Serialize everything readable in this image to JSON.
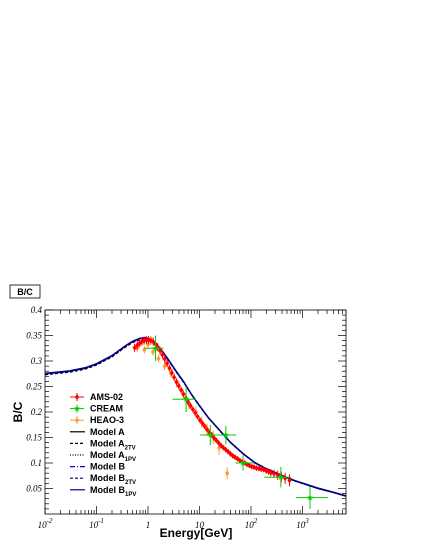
{
  "chart_data": {
    "type": "scatter",
    "title": "B/C",
    "xlabel": "Energy[GeV]",
    "ylabel": "B/C",
    "xscale": "log",
    "xlim": [
      0.01,
      7000
    ],
    "ylim": [
      0.0,
      0.4
    ],
    "x_tick_labels": [
      {
        "base": "10",
        "exp": "-2",
        "value": 0.01
      },
      {
        "base": "10",
        "exp": "-1",
        "value": 0.1
      },
      {
        "base": "1",
        "exp": "",
        "value": 1
      },
      {
        "base": "10",
        "exp": "",
        "value": 10
      },
      {
        "base": "10",
        "exp": "2",
        "value": 100
      },
      {
        "base": "10",
        "exp": "3",
        "value": 1000
      }
    ],
    "y_ticks": [
      0.05,
      0.1,
      0.15,
      0.2,
      0.25,
      0.3,
      0.35,
      0.4
    ],
    "y_tick_labels": [
      "0.05",
      "0.1",
      "0.15",
      "0.2",
      "0.25",
      "0.3",
      "0.35",
      "0.4"
    ],
    "legend_position": "bottom-left",
    "grid": false,
    "series": [
      {
        "name": "AMS-02",
        "kind": "points",
        "color": "#ff0000",
        "marker": "diamond",
        "x": [
          0.55,
          0.62,
          0.69,
          0.76,
          0.84,
          0.93,
          1.03,
          1.14,
          1.26,
          1.4,
          1.55,
          1.72,
          1.91,
          2.12,
          2.35,
          2.61,
          2.9,
          3.22,
          3.58,
          3.97,
          4.41,
          4.9,
          5.44,
          6.04,
          6.71,
          7.45,
          8.28,
          9.2,
          10.2,
          11.4,
          12.6,
          14.0,
          15.6,
          17.3,
          19.2,
          21.3,
          23.7,
          26.3,
          29.2,
          32.5,
          36.0,
          40.0,
          44.5,
          49.4,
          55.0,
          61.1,
          68.0,
          75.5,
          84.0,
          93.3,
          104,
          115,
          128,
          143,
          159,
          177,
          197,
          219,
          243,
          280,
          330,
          390,
          460,
          560
        ],
        "y": [
          0.326,
          0.331,
          0.335,
          0.338,
          0.34,
          0.341,
          0.341,
          0.34,
          0.338,
          0.333,
          0.327,
          0.32,
          0.312,
          0.304,
          0.295,
          0.286,
          0.277,
          0.268,
          0.259,
          0.251,
          0.243,
          0.235,
          0.227,
          0.219,
          0.212,
          0.205,
          0.198,
          0.191,
          0.184,
          0.178,
          0.172,
          0.166,
          0.16,
          0.155,
          0.149,
          0.144,
          0.139,
          0.134,
          0.13,
          0.126,
          0.122,
          0.118,
          0.114,
          0.111,
          0.108,
          0.105,
          0.102,
          0.1,
          0.097,
          0.095,
          0.093,
          0.092,
          0.09,
          0.089,
          0.088,
          0.087,
          0.085,
          0.083,
          0.081,
          0.079,
          0.076,
          0.073,
          0.07,
          0.066
        ],
        "yerr": [
          0.008,
          0.008,
          0.008,
          0.008,
          0.008,
          0.008,
          0.008,
          0.008,
          0.008,
          0.008,
          0.008,
          0.008,
          0.008,
          0.008,
          0.007,
          0.007,
          0.007,
          0.007,
          0.007,
          0.007,
          0.006,
          0.006,
          0.006,
          0.006,
          0.006,
          0.006,
          0.005,
          0.005,
          0.005,
          0.005,
          0.005,
          0.005,
          0.005,
          0.005,
          0.004,
          0.004,
          0.004,
          0.004,
          0.004,
          0.004,
          0.004,
          0.004,
          0.004,
          0.004,
          0.004,
          0.004,
          0.004,
          0.004,
          0.004,
          0.004,
          0.004,
          0.004,
          0.005,
          0.005,
          0.005,
          0.005,
          0.006,
          0.006,
          0.007,
          0.008,
          0.009,
          0.01,
          0.011,
          0.012
        ]
      },
      {
        "name": "CREAM",
        "kind": "points",
        "color": "#00cc00",
        "marker": "star",
        "x": [
          1.4,
          5.5,
          16.2,
          32.5,
          70.0,
          380.0,
          1400.0
        ],
        "y": [
          0.325,
          0.225,
          0.155,
          0.155,
          0.1,
          0.072,
          0.032
        ],
        "yerr": [
          0.025,
          0.025,
          0.02,
          0.018,
          0.015,
          0.02,
          0.022
        ],
        "xerr_low": [
          0.55,
          2.5,
          6.0,
          12.5,
          20.0,
          200.0,
          650.0
        ],
        "xerr_high": [
          0.6,
          3.0,
          9.0,
          19.5,
          45.0,
          220.0,
          1700.0
        ]
      },
      {
        "name": "HEAO-3",
        "kind": "points",
        "color": "#ff9933",
        "marker": "diamond",
        "x": [
          0.62,
          0.85,
          1.0,
          1.25,
          1.6,
          2.1,
          2.8,
          3.6,
          4.8,
          6.3,
          8.5,
          11.0,
          14.0,
          18.5,
          24.0,
          34.5
        ],
        "y": [
          0.325,
          0.322,
          0.332,
          0.318,
          0.305,
          0.29,
          0.275,
          0.257,
          0.235,
          0.215,
          0.2,
          0.18,
          0.165,
          0.15,
          0.13,
          0.08
        ],
        "yerr": [
          0.007,
          0.007,
          0.007,
          0.007,
          0.007,
          0.008,
          0.008,
          0.009,
          0.01,
          0.01,
          0.011,
          0.011,
          0.012,
          0.013,
          0.014,
          0.012
        ]
      },
      {
        "name": "Model A",
        "name_sub": "",
        "kind": "line",
        "color": "#000000",
        "dash": "",
        "x": [
          0.01,
          0.03,
          0.06,
          0.1,
          0.2,
          0.35,
          0.5,
          0.7,
          0.85,
          1.0,
          1.3,
          1.8,
          2.5,
          3.5,
          5.0,
          7.0,
          10,
          15,
          25,
          40,
          70,
          120,
          200,
          400,
          700,
          1000,
          2000,
          4000,
          7000
        ],
        "y": [
          0.275,
          0.28,
          0.286,
          0.294,
          0.31,
          0.328,
          0.338,
          0.344,
          0.345,
          0.344,
          0.338,
          0.322,
          0.302,
          0.28,
          0.258,
          0.234,
          0.212,
          0.188,
          0.163,
          0.14,
          0.118,
          0.1,
          0.088,
          0.075,
          0.065,
          0.06,
          0.05,
          0.042,
          0.035
        ]
      },
      {
        "name": "Model A",
        "name_sub": "2TV",
        "kind": "line",
        "color": "#000000",
        "dash": "3,2",
        "x": [
          0.01,
          0.03,
          0.06,
          0.1,
          0.2,
          0.35,
          0.5,
          0.7,
          0.85,
          1.0,
          1.3,
          1.8,
          2.5,
          3.5,
          5.0,
          7.0,
          10,
          15,
          25,
          40,
          70,
          120,
          200,
          400,
          700,
          1000,
          2000,
          4000,
          7000
        ],
        "y": [
          0.273,
          0.278,
          0.284,
          0.292,
          0.308,
          0.326,
          0.336,
          0.342,
          0.343,
          0.342,
          0.336,
          0.32,
          0.301,
          0.279,
          0.257,
          0.234,
          0.212,
          0.188,
          0.163,
          0.14,
          0.118,
          0.1,
          0.088,
          0.075,
          0.065,
          0.06,
          0.05,
          0.042,
          0.035
        ]
      },
      {
        "name": "Model A",
        "name_sub": "1PV",
        "kind": "line",
        "color": "#000000",
        "dash": "1,1.5",
        "x": [
          0.01,
          0.03,
          0.06,
          0.1,
          0.2,
          0.35,
          0.5,
          0.7,
          0.85,
          1.0,
          1.3,
          1.8,
          2.5,
          3.5,
          5.0,
          7.0,
          10,
          15,
          25,
          40,
          70,
          120,
          200,
          400,
          700,
          1000,
          2000,
          4000,
          7000
        ],
        "y": [
          0.274,
          0.279,
          0.285,
          0.293,
          0.309,
          0.327,
          0.337,
          0.343,
          0.344,
          0.343,
          0.337,
          0.321,
          0.301,
          0.279,
          0.257,
          0.234,
          0.212,
          0.188,
          0.163,
          0.14,
          0.118,
          0.1,
          0.088,
          0.075,
          0.065,
          0.06,
          0.05,
          0.042,
          0.035
        ]
      },
      {
        "name": "Model B",
        "name_sub": "",
        "kind": "line",
        "color": "#0000ff",
        "dash": "5,2,1,2",
        "x": [
          0.01,
          0.03,
          0.06,
          0.1,
          0.2,
          0.35,
          0.5,
          0.7,
          0.85,
          1.0,
          1.3,
          1.8,
          2.5,
          3.5,
          5.0,
          7.0,
          10,
          15,
          25,
          40,
          70,
          120,
          200,
          400,
          700,
          1000,
          2000,
          4000,
          7000
        ],
        "y": [
          0.275,
          0.28,
          0.286,
          0.294,
          0.31,
          0.328,
          0.338,
          0.344,
          0.345,
          0.344,
          0.338,
          0.322,
          0.302,
          0.28,
          0.258,
          0.234,
          0.212,
          0.188,
          0.163,
          0.14,
          0.118,
          0.1,
          0.088,
          0.075,
          0.065,
          0.06,
          0.05,
          0.042,
          0.035
        ]
      },
      {
        "name": "Model B",
        "name_sub": "2TV",
        "kind": "line",
        "color": "#000080",
        "dash": "3,2",
        "x": [
          0.01,
          0.03,
          0.06,
          0.1,
          0.2,
          0.35,
          0.5,
          0.7,
          0.85,
          1.0,
          1.3,
          1.8,
          2.5,
          3.5,
          5.0,
          7.0,
          10,
          15,
          25,
          40,
          70,
          120,
          200,
          400,
          700,
          1000,
          2000,
          4000,
          7000
        ],
        "y": [
          0.275,
          0.28,
          0.286,
          0.294,
          0.31,
          0.328,
          0.338,
          0.344,
          0.345,
          0.344,
          0.338,
          0.322,
          0.302,
          0.28,
          0.258,
          0.234,
          0.212,
          0.188,
          0.163,
          0.14,
          0.118,
          0.1,
          0.088,
          0.075,
          0.065,
          0.06,
          0.05,
          0.042,
          0.035
        ]
      },
      {
        "name": "Model B",
        "name_sub": "1PV",
        "kind": "line",
        "color": "#00008b",
        "dash": "",
        "x": [
          0.01,
          0.03,
          0.06,
          0.1,
          0.2,
          0.35,
          0.5,
          0.7,
          0.85,
          1.0,
          1.3,
          1.8,
          2.5,
          3.5,
          5.0,
          7.0,
          10,
          15,
          25,
          40,
          70,
          120,
          200,
          400,
          700,
          1000,
          2000,
          4000,
          7000
        ],
        "y": [
          0.276,
          0.281,
          0.287,
          0.295,
          0.311,
          0.329,
          0.339,
          0.345,
          0.346,
          0.345,
          0.339,
          0.323,
          0.303,
          0.281,
          0.259,
          0.235,
          0.213,
          0.189,
          0.164,
          0.141,
          0.119,
          0.101,
          0.089,
          0.076,
          0.066,
          0.061,
          0.051,
          0.043,
          0.036
        ]
      }
    ]
  }
}
